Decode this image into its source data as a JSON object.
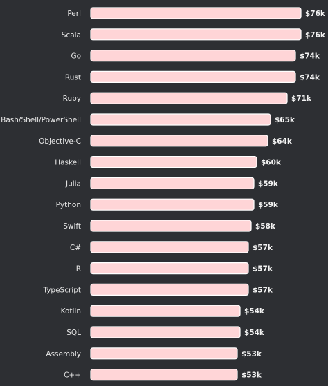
{
  "chart_data": {
    "type": "bar",
    "orientation": "horizontal",
    "categories": [
      "Perl",
      "Scala",
      "Go",
      "Rust",
      "Ruby",
      "Bash/Shell/PowerShell",
      "Objective-C",
      "Haskell",
      "Julia",
      "Python",
      "Swift",
      "C#",
      "R",
      "TypeScript",
      "Kotlin",
      "SQL",
      "Assembly",
      "C++"
    ],
    "values": [
      76,
      76,
      74,
      74,
      71,
      65,
      64,
      60,
      59,
      59,
      58,
      57,
      57,
      57,
      54,
      54,
      53,
      53
    ],
    "value_labels": [
      "$76k",
      "$76k",
      "$74k",
      "$74k",
      "$71k",
      "$65k",
      "$64k",
      "$60k",
      "$59k",
      "$59k",
      "$58k",
      "$57k",
      "$57k",
      "$57k",
      "$54k",
      "$54k",
      "$53k",
      "$53k"
    ],
    "xlim": [
      0,
      76
    ],
    "grid": false,
    "colors": {
      "background": "#2d2f33",
      "bar_fill": "#ffd5d7",
      "bar_stroke": "#ffffff",
      "label_text": "#e6e6e6",
      "value_text": "#f2f2f2"
    }
  }
}
